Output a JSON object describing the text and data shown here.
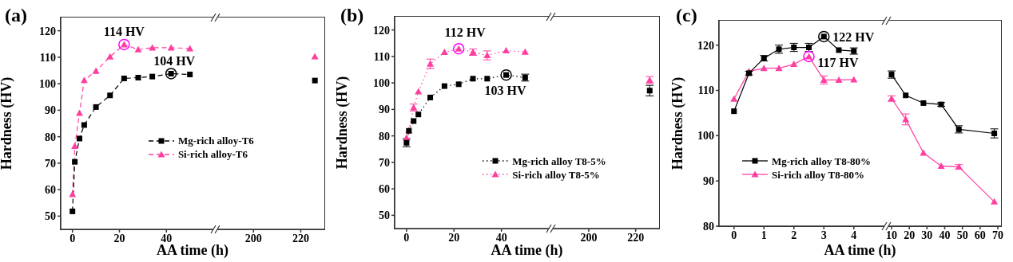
{
  "chart_data": [
    {
      "type": "line",
      "xlabel": "AA time (h)",
      "ylabel": "Hardness (HV)",
      "xlim": [
        -5,
        61
      ],
      "xticks": [
        0,
        20,
        40
      ],
      "ylim": [
        45,
        125
      ],
      "yticks": [
        50,
        60,
        70,
        80,
        90,
        100,
        110,
        120
      ],
      "line_style": "dashed",
      "legend": "right",
      "annotations": [
        "(a)",
        {
          "text": "114 HV",
          "x": 22,
          "y": 114.8
        },
        {
          "text": "104 HV",
          "x": 42,
          "y": 103.8
        }
      ],
      "x": [
        0,
        1,
        3,
        5,
        10,
        16,
        22,
        28,
        34,
        42,
        50
      ],
      "series": [
        {
          "name": "Mg-rich alloy-T6",
          "color": "#000000",
          "marker": "square",
          "values": [
            51.8,
            70.5,
            79.3,
            84.4,
            91.2,
            95.6,
            102,
            102.3,
            102.7,
            103.8,
            103.5
          ]
        },
        {
          "name": "Si-rich alloy-T6",
          "color": "#ff3fa0",
          "marker": "triangle",
          "values": [
            58.2,
            76.4,
            88.9,
            101.3,
            104.8,
            110.2,
            114.8,
            112.9,
            113.6,
            113.6,
            113.3
          ]
        }
      ]
    },
    {
      "type": "line",
      "xlim": [
        184,
        230
      ],
      "xticks": [
        200,
        220
      ],
      "ylim": [
        45,
        125
      ],
      "tick_labels": "x",
      "line_style": "dashed",
      "x": [
        226
      ],
      "series": [
        {
          "color": "#000000",
          "marker": "square",
          "values": [
            101.2
          ]
        },
        {
          "color": "#ff3fa0",
          "marker": "triangle",
          "values": [
            110.3
          ]
        }
      ]
    },
    {
      "type": "line",
      "xlabel": "AA time (h)",
      "ylabel": "Hardness (HV)",
      "xlim": [
        -5,
        61
      ],
      "xticks": [
        0,
        20,
        40
      ],
      "ylim": [
        45,
        125
      ],
      "yticks": [
        50,
        60,
        70,
        80,
        90,
        100,
        110,
        120
      ],
      "line_style": "dotted",
      "legend": "bottom right",
      "annotations": [
        "(b)",
        {
          "text": "112 HV",
          "x": 22,
          "y": 112.9
        },
        {
          "text": "103 HV",
          "x": 42,
          "y": 103
        }
      ],
      "x": [
        0,
        1,
        3,
        5,
        10,
        16,
        22,
        28,
        34,
        42,
        50
      ],
      "series": [
        {
          "name": "Mg-rich alloy T8-5%",
          "color": "#000000",
          "marker": "square",
          "values": [
            77.4,
            81.9,
            85.6,
            88.1,
            94.5,
            98.8,
            99.5,
            101.6,
            101.6,
            103,
            102
          ],
          "errors": [
            1.5,
            null,
            null,
            null,
            null,
            null,
            null,
            null,
            null,
            null,
            1.3
          ]
        },
        {
          "name": "Si-rich alloy T8-5%",
          "color": "#ff3fa0",
          "marker": "triangle",
          "values": [
            79.3,
            82.1,
            90.7,
            96.7,
            107.2,
            111.6,
            112.9,
            111.6,
            110.4,
            112.2,
            111.7
          ],
          "errors": [
            null,
            null,
            1.3,
            null,
            1.8,
            null,
            null,
            1.2,
            1.7,
            null,
            null
          ]
        }
      ]
    },
    {
      "type": "line",
      "xlim": [
        184,
        230
      ],
      "xticks": [
        200,
        220
      ],
      "ylim": [
        45,
        125
      ],
      "tick_labels": "x",
      "line_style": "dotted",
      "x": [
        226
      ],
      "series": [
        {
          "color": "#000000",
          "marker": "square",
          "values": [
            97.1
          ],
          "errors": [
            2
          ]
        },
        {
          "color": "#ff3fa0",
          "marker": "triangle",
          "values": [
            101.1
          ],
          "errors": [
            1.3
          ]
        }
      ]
    },
    {
      "type": "line",
      "xlabel": "AA time (h)",
      "ylabel": "Hardness (HV)",
      "xlim": [
        -0.5,
        5.1
      ],
      "xticks": [
        0,
        1,
        2,
        3,
        4
      ],
      "ylim": [
        80,
        125.4
      ],
      "yticks": [
        80,
        90,
        100,
        110,
        120
      ],
      "line_style": "solid",
      "legend": "bottom left",
      "annotations": [
        "(c)",
        {
          "text": "122 HV",
          "x": 3,
          "y": 121.9
        },
        {
          "text": "117 HV",
          "x": 2.5,
          "y": 117.5
        }
      ],
      "x": [
        0,
        0.5,
        1,
        1.5,
        2,
        2.5,
        3,
        3.5,
        4
      ],
      "series": [
        {
          "name": "Mg-rich alloy T8-80%",
          "color": "#000000",
          "marker": "square",
          "values": [
            105.4,
            113.8,
            117.1,
            119.1,
            119.5,
            119.5,
            121.9,
            118.9,
            118.7
          ],
          "errors": [
            null,
            0.4,
            0.6,
            0.9,
            0.9,
            0.9,
            null,
            null,
            0.7
          ]
        },
        {
          "name": "Si-rich alloy T8-80%",
          "color": "#ff3fa0",
          "marker": "triangle",
          "values": [
            108.1,
            114.2,
            114.9,
            114.9,
            115.8,
            117.5,
            112.3,
            112.3,
            112.4
          ],
          "errors": [
            null,
            null,
            null,
            null,
            null,
            null,
            0.9,
            null,
            null
          ]
        }
      ]
    },
    {
      "type": "line",
      "xlim": [
        7.3,
        71.8
      ],
      "xticks": [
        10,
        20,
        30,
        40,
        50,
        60,
        70
      ],
      "ylim": [
        80,
        125.4
      ],
      "tick_labels": "x",
      "line_style": "solid",
      "x": [
        10,
        18,
        28,
        38,
        48,
        68
      ],
      "series": [
        {
          "color": "#000000",
          "marker": "square",
          "values": [
            113.5,
            108.9,
            107.2,
            106.9,
            101.4,
            100.5
          ],
          "errors": [
            0.8,
            null,
            null,
            0.4,
            0.8,
            1.0
          ]
        },
        {
          "color": "#ff3fa0",
          "marker": "triangle",
          "values": [
            108.2,
            103.6,
            96.2,
            93.3,
            93.1,
            85.4
          ],
          "errors": [
            0.6,
            1.2,
            null,
            null,
            0.5,
            null
          ]
        }
      ]
    }
  ]
}
